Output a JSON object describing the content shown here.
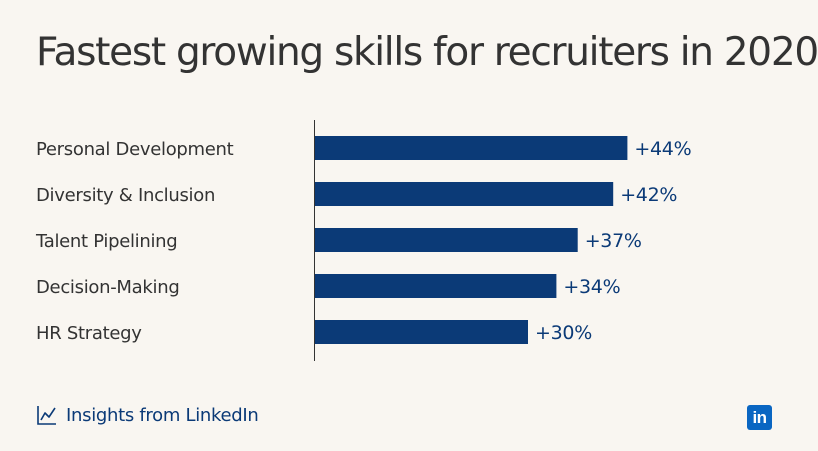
{
  "chart_data": {
    "type": "bar",
    "orientation": "horizontal",
    "title": "Fastest growing skills for recruiters in 2020",
    "categories": [
      "Personal Development",
      "Diversity & Inclusion",
      "Talent Pipelining",
      "Decision-Making",
      "HR Strategy"
    ],
    "values": [
      44,
      42,
      37,
      34,
      30
    ],
    "value_labels": [
      "+44%",
      "+42%",
      "+37%",
      "+34%",
      "+30%"
    ],
    "xlim": [
      0,
      50
    ],
    "grid": false,
    "legend": "none",
    "bar_color": "#0b3a77"
  },
  "footer": {
    "text": "Insights from LinkedIn",
    "icon": "chart-line-icon"
  },
  "logo": {
    "text": "in",
    "color": "#0a66c2"
  }
}
